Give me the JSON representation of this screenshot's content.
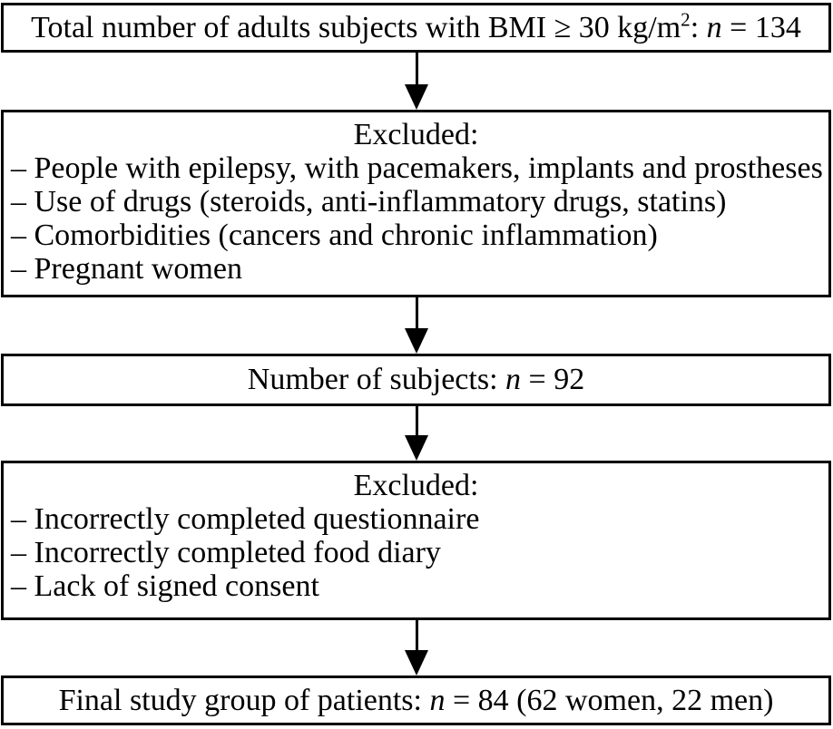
{
  "colors": {
    "background": "#ffffff",
    "box_border": "#000000",
    "text": "#000000",
    "arrow": "#000000"
  },
  "arrows": {
    "direction": "down",
    "count": 4,
    "style": "solid-triangle-head"
  },
  "flowchart": {
    "boxes": [
      {
        "name": "total-subjects",
        "type": "single",
        "segments": [
          {
            "t": "Total number of adults subjects with BMI ≥ 30 kg/m"
          },
          {
            "t": "2",
            "sup": true
          },
          {
            "t": ": "
          },
          {
            "t": "n",
            "i": true
          },
          {
            "t": " = 134"
          }
        ]
      },
      {
        "name": "excluded-first",
        "type": "list",
        "title": "Excluded:",
        "items": [
          "– People with epilepsy, with pacemakers, implants and prostheses",
          "– Use of drugs (steroids, anti-inflammatory drugs, statins)",
          "– Comorbidities (cancers and chronic inflammation)",
          "– Pregnant women"
        ]
      },
      {
        "name": "subjects-remaining",
        "type": "single",
        "segments": [
          {
            "t": "Number of subjects: "
          },
          {
            "t": "n",
            "i": true
          },
          {
            "t": " = 92"
          }
        ]
      },
      {
        "name": "excluded-second",
        "type": "list",
        "title": "Excluded:",
        "items": [
          "– Incorrectly completed questionnaire",
          "– Incorrectly completed food diary",
          "– Lack of signed consent"
        ]
      },
      {
        "name": "final-study-group",
        "type": "single",
        "segments": [
          {
            "t": "Final study group of patients: "
          },
          {
            "t": "n",
            "i": true
          },
          {
            "t": " = 84 (62 women, 22 men)"
          }
        ]
      }
    ]
  }
}
